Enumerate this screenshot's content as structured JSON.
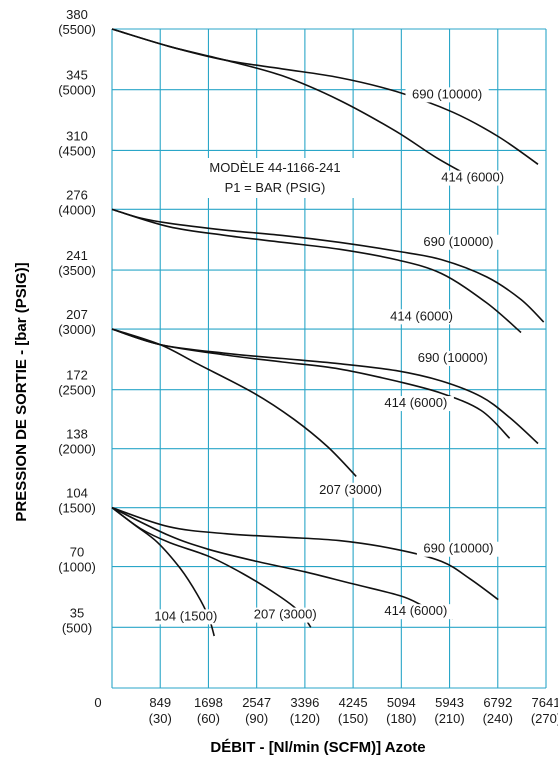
{
  "chart_data": {
    "type": "line",
    "title": "",
    "annotation": [
      "MODÈLE 44-1166-241",
      "P1 = BAR (PSIG)"
    ],
    "xlabel": "DÉBIT - [Nl/min (SCFM)] Azote",
    "ylabel": "PRESSION DE SORTIE - [bar (PSIG)]",
    "xlim": [
      0,
      7641
    ],
    "ylim": [
      0,
      380
    ],
    "grid": true,
    "x_ticks": [
      {
        "value": 0,
        "label": "0",
        "sub": ""
      },
      {
        "value": 849,
        "label": "849",
        "sub": "(30)"
      },
      {
        "value": 1698,
        "label": "1698",
        "sub": "(60)"
      },
      {
        "value": 2547,
        "label": "2547",
        "sub": "(90)"
      },
      {
        "value": 3396,
        "label": "3396",
        "sub": "(120)"
      },
      {
        "value": 4245,
        "label": "4245",
        "sub": "(150)"
      },
      {
        "value": 5094,
        "label": "5094",
        "sub": "(180)"
      },
      {
        "value": 5943,
        "label": "5943",
        "sub": "(210)"
      },
      {
        "value": 6792,
        "label": "6792",
        "sub": "(240)"
      },
      {
        "value": 7641,
        "label": "7641",
        "sub": "(270)"
      }
    ],
    "y_ticks": [
      {
        "value": 35,
        "label": "35",
        "sub": "(500)"
      },
      {
        "value": 70,
        "label": "70",
        "sub": "(1000)"
      },
      {
        "value": 104,
        "label": "104",
        "sub": "(1500)"
      },
      {
        "value": 138,
        "label": "138",
        "sub": "(2000)"
      },
      {
        "value": 172,
        "label": "172",
        "sub": "(2500)"
      },
      {
        "value": 207,
        "label": "207",
        "sub": "(3000)"
      },
      {
        "value": 241,
        "label": "241",
        "sub": "(3500)"
      },
      {
        "value": 276,
        "label": "276",
        "sub": "(4000)"
      },
      {
        "value": 310,
        "label": "310",
        "sub": "(4500)"
      },
      {
        "value": 345,
        "label": "345",
        "sub": "(5000)"
      },
      {
        "value": 380,
        "label": "380",
        "sub": "(5500)"
      }
    ],
    "series": [
      {
        "name": "690 (10000)",
        "x": [
          0,
          1000,
          2000,
          3000,
          4000,
          5000,
          6000,
          6800,
          7500
        ],
        "y": [
          380,
          370,
          362,
          357,
          352,
          344,
          332,
          318,
          302
        ]
      },
      {
        "name": "414 (6000)",
        "x": [
          0,
          1000,
          2000,
          3000,
          4000,
          5000,
          5700,
          6300
        ],
        "y": [
          380,
          370,
          362,
          353,
          339,
          321,
          306,
          295
        ]
      },
      {
        "name": "690 (10000)",
        "x": [
          0,
          500,
          1000,
          2000,
          3000,
          4000,
          5000,
          5800,
          6600,
          7200,
          7600
        ],
        "y": [
          276,
          271,
          268,
          264,
          261,
          257,
          252,
          247,
          237,
          224,
          211
        ]
      },
      {
        "name": "414 (6000)",
        "x": [
          0,
          1000,
          2000,
          3000,
          4000,
          5000,
          5800,
          6600,
          7200
        ],
        "y": [
          276,
          266,
          261,
          257,
          253,
          247,
          239,
          222,
          205
        ]
      },
      {
        "name": "690 (10000)",
        "x": [
          0,
          849,
          2000,
          3000,
          4000,
          5000,
          5800,
          6500,
          7000,
          7500
        ],
        "y": [
          207,
          198,
          193,
          190,
          187,
          183,
          177,
          168,
          156,
          141
        ]
      },
      {
        "name": "414 (6000)",
        "x": [
          0,
          849,
          2000,
          3000,
          4000,
          5000,
          5800,
          6500,
          7000
        ],
        "y": [
          207,
          198,
          192,
          188,
          184,
          177,
          170,
          160,
          144
        ]
      },
      {
        "name": "207 (3000)",
        "x": [
          0,
          849,
          1500,
          2500,
          3200,
          3800,
          4300
        ],
        "y": [
          207,
          198,
          187,
          170,
          155,
          139,
          122
        ]
      },
      {
        "name": "690 (10000)",
        "x": [
          0,
          1000,
          2000,
          3000,
          4000,
          5000,
          5800,
          6300,
          6800
        ],
        "y": [
          104,
          93,
          89,
          87,
          85,
          80,
          73,
          63,
          51
        ]
      },
      {
        "name": "414 (6000)",
        "x": [
          0,
          1000,
          1698,
          2547,
          3396,
          4245,
          5094,
          5500,
          6000
        ],
        "y": [
          104,
          88,
          80,
          73,
          67,
          60,
          53,
          47,
          40
        ]
      },
      {
        "name": "207 (3000)",
        "x": [
          0,
          500,
          1000,
          1698,
          2300,
          2900,
          3300,
          3500
        ],
        "y": [
          104,
          92,
          84,
          76,
          66,
          54,
          44,
          35
        ]
      },
      {
        "name": "104 (1500)",
        "x": [
          0,
          400,
          800,
          1200,
          1500,
          1700,
          1800
        ],
        "y": [
          104,
          94,
          84,
          69,
          54,
          41,
          30
        ]
      }
    ],
    "series_label_anchor": [
      {
        "x": 5900,
        "y": 340
      },
      {
        "x": 6350,
        "y": 292
      },
      {
        "x": 6100,
        "y": 255
      },
      {
        "x": 5450,
        "y": 212
      },
      {
        "x": 6000,
        "y": 188
      },
      {
        "x": 5350,
        "y": 162
      },
      {
        "x": 4200,
        "y": 112
      },
      {
        "x": 6100,
        "y": 78
      },
      {
        "x": 5350,
        "y": 42
      },
      {
        "x": 3050,
        "y": 40
      },
      {
        "x": 1300,
        "y": 39
      }
    ]
  }
}
